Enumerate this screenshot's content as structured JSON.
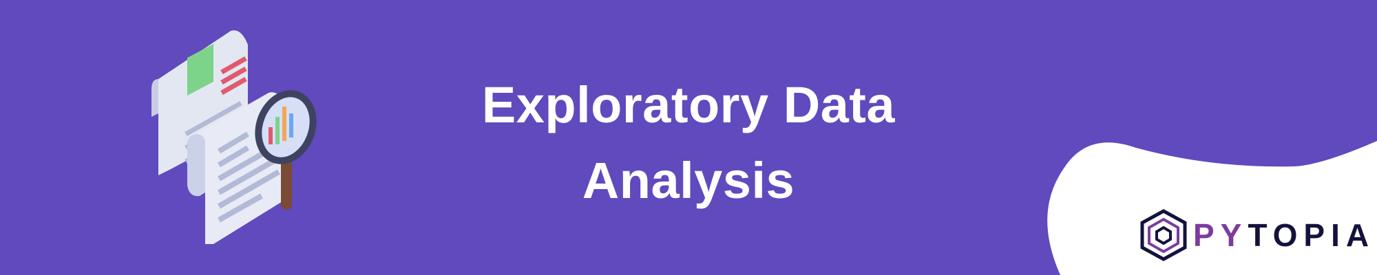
{
  "banner": {
    "title_line1": "Exploratory Data",
    "title_line2": "Analysis",
    "background_color": "#6149BE",
    "text_color": "#FFFFFF"
  },
  "illustration": {
    "icon": "document-magnifier-icon"
  },
  "logo": {
    "icon": "hexagon-logo-icon",
    "text_accent": "PY",
    "text_rest": "TOPIA",
    "accent_color": "#7B3C9E",
    "dark_color": "#14123D"
  }
}
